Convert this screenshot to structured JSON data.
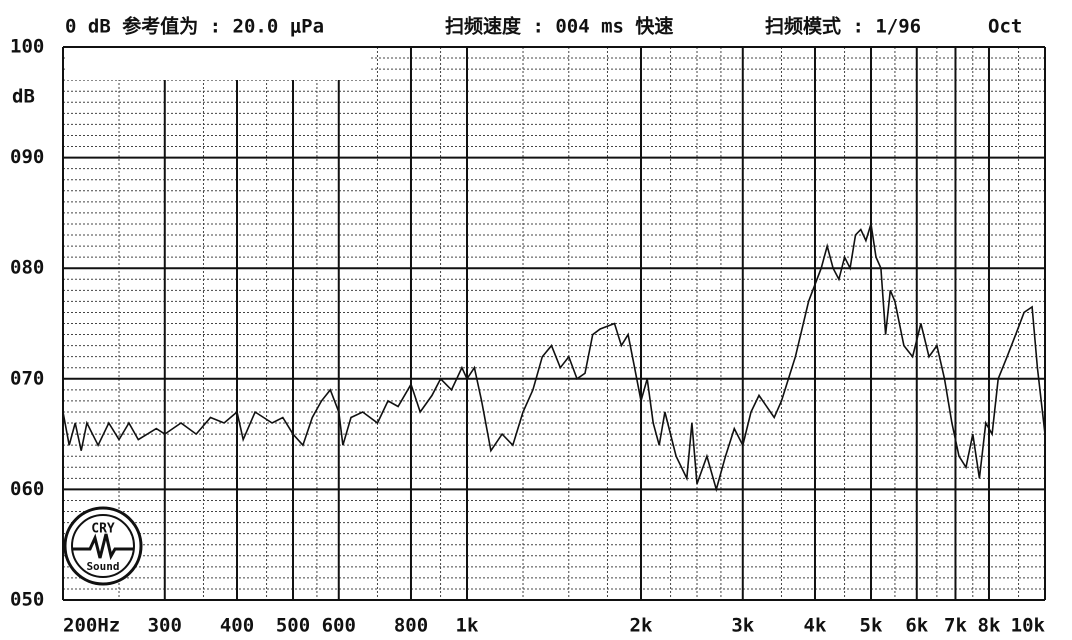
{
  "chart_data": {
    "type": "line",
    "header": [
      "0 dB 参考值为 : 20.0 μPa",
      "扫频速度 : 004 ms 快速",
      "扫频模式 : 1/96",
      "Oct"
    ],
    "y_unit": "dB",
    "logo": {
      "top": "CRY",
      "bottom": "Sound"
    },
    "xscale": "log",
    "xlim": [
      200,
      10000
    ],
    "ylim": [
      50,
      100
    ],
    "grid": true,
    "color": "#111111",
    "xticks": [
      {
        "value": 200,
        "label": "200Hz"
      },
      300,
      400,
      500,
      600,
      800,
      {
        "value": 1000,
        "label": "1k"
      },
      {
        "value": 2000,
        "label": "2k"
      },
      {
        "value": 3000,
        "label": "3k"
      },
      {
        "value": 4000,
        "label": "4k"
      },
      {
        "value": 5000,
        "label": "5k"
      },
      {
        "value": 6000,
        "label": "6k"
      },
      {
        "value": 7000,
        "label": "7k"
      },
      {
        "value": 8000,
        "label": "8k"
      },
      {
        "value": 10000,
        "label": "10k"
      }
    ],
    "xminor": [
      250,
      350,
      450,
      550,
      700,
      900,
      1250,
      1500,
      1750,
      2250,
      2500,
      2750,
      3500,
      4500,
      5500,
      6500,
      7500,
      9000
    ],
    "yticks": [
      {
        "value": 50,
        "label": "050"
      },
      {
        "value": 60,
        "label": "060"
      },
      {
        "value": 70,
        "label": "070"
      },
      {
        "value": 80,
        "label": "080"
      },
      {
        "value": 90,
        "label": "090"
      },
      100
    ],
    "yminor": [
      51,
      52,
      53,
      54,
      55,
      56,
      57,
      58,
      59,
      61,
      62,
      63,
      64,
      65,
      66,
      67,
      68,
      69,
      71,
      72,
      73,
      74,
      75,
      76,
      77,
      78,
      79,
      81,
      82,
      83,
      84,
      85,
      86,
      87,
      88,
      89,
      91,
      92,
      93,
      94,
      95,
      96,
      97,
      98,
      99
    ],
    "x": [
      200,
      205,
      210,
      215,
      220,
      230,
      240,
      250,
      260,
      270,
      290,
      300,
      320,
      340,
      360,
      380,
      400,
      410,
      430,
      460,
      480,
      500,
      520,
      540,
      560,
      580,
      600,
      610,
      630,
      660,
      700,
      730,
      760,
      800,
      830,
      870,
      900,
      940,
      980,
      1000,
      1030,
      1060,
      1100,
      1150,
      1200,
      1250,
      1300,
      1350,
      1400,
      1450,
      1500,
      1550,
      1600,
      1650,
      1700,
      1800,
      1850,
      1900,
      1950,
      2000,
      2050,
      2100,
      2150,
      2200,
      2300,
      2400,
      2450,
      2500,
      2600,
      2700,
      2800,
      2900,
      3000,
      3100,
      3200,
      3400,
      3500,
      3700,
      3900,
      4100,
      4200,
      4300,
      4400,
      4500,
      4600,
      4700,
      4800,
      4900,
      5000,
      5100,
      5200,
      5300,
      5400,
      5500,
      5700,
      5900,
      6100,
      6300,
      6500,
      6700,
      6900,
      7100,
      7300,
      7500,
      7700,
      7900,
      8100,
      8300,
      8600,
      8900,
      9200,
      9500,
      9700,
      10000
    ],
    "values": [
      67,
      64,
      66,
      63.5,
      66,
      64,
      66,
      64.5,
      66,
      64.5,
      65.5,
      65,
      66,
      65,
      66.5,
      66,
      67,
      64.5,
      67,
      66,
      66.5,
      65,
      64,
      66.5,
      68,
      69,
      67,
      64,
      66.5,
      67,
      66,
      68,
      67.5,
      69.5,
      67,
      68.5,
      70,
      69,
      71,
      70,
      71,
      68,
      63.5,
      65,
      64,
      67,
      69,
      72,
      73,
      71,
      72,
      70,
      70.5,
      74,
      74.5,
      75,
      73,
      74,
      71,
      68,
      70,
      66,
      64,
      67,
      63,
      61,
      66,
      60.5,
      63,
      60,
      63,
      65.5,
      64,
      67,
      68.5,
      66.5,
      68,
      72,
      77,
      80,
      82,
      80,
      79,
      81,
      80,
      83,
      83.5,
      82.5,
      84,
      81,
      80,
      74,
      78,
      77,
      73,
      72,
      75,
      72,
      73,
      70,
      66,
      63,
      62,
      65,
      61,
      66,
      65,
      70,
      72,
      74,
      76,
      76.5,
      71,
      65
    ]
  }
}
